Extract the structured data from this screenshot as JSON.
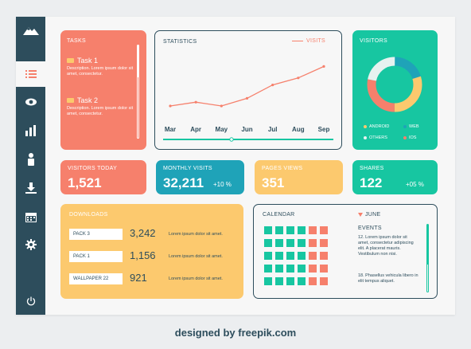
{
  "sidebar": {
    "items": [
      {
        "icon": "mountain-logo-icon"
      },
      {
        "icon": "list-icon"
      },
      {
        "icon": "eye-icon"
      },
      {
        "icon": "bar-chart-icon"
      },
      {
        "icon": "user-icon"
      },
      {
        "icon": "download-icon"
      },
      {
        "icon": "calendar-icon"
      },
      {
        "icon": "gear-icon"
      },
      {
        "icon": "power-icon"
      }
    ]
  },
  "tasks": {
    "title": "TASKS",
    "items": [
      {
        "title": "Task 1",
        "desc": "Description. Lorem ipsum dolor sit amet, consectetur."
      },
      {
        "title": "Task 2",
        "desc": "Description. Lorem ipsum dolor sit amet, consectetur."
      }
    ]
  },
  "statistics": {
    "title": "STATISTICS",
    "legend": "VISITS"
  },
  "chart_data": {
    "type": "line",
    "categories": [
      "Mar",
      "Apr",
      "May",
      "Jun",
      "Jul",
      "Aug",
      "Sep"
    ],
    "series": [
      {
        "name": "VISITS",
        "values": [
          20,
          26,
          20,
          32,
          53,
          64,
          82
        ]
      }
    ],
    "ylim": [
      0,
      100
    ],
    "title": "STATISTICS"
  },
  "visitors": {
    "title": "VISITORS",
    "segments": [
      {
        "label": "ANDROID",
        "value": 30,
        "color": "#fcc96e"
      },
      {
        "label": "WEB",
        "value": 20,
        "color": "#1fa3b8"
      },
      {
        "label": "OTHERS",
        "value": 22,
        "color": "#e6f2f0"
      },
      {
        "label": "IOS",
        "value": 28,
        "color": "#f6806c"
      }
    ]
  },
  "kpis": [
    {
      "label": "VISITORS TODAY",
      "value": "1,521",
      "delta": "",
      "color": "#f6806c"
    },
    {
      "label": "MONTHLY VISITS",
      "value": "32,211",
      "delta": "+10 %",
      "color": "#1fa3b8"
    },
    {
      "label": "PAGES VIEWS",
      "value": "351",
      "delta": "",
      "color": "#fcc96e"
    },
    {
      "label": "SHARES",
      "value": "122",
      "delta": "+05 %",
      "color": "#17c6a1"
    }
  ],
  "downloads": {
    "title": "DOWNLOADS",
    "rows": [
      {
        "name": "PACK 3",
        "value": "3,242",
        "text": "Lorem ipsum dolor sit amet."
      },
      {
        "name": "PACK 1",
        "value": "1,156",
        "text": "Lorem ipsum dolor sit amet."
      },
      {
        "name": "WALLPAPER 22",
        "value": "921",
        "text": "Lorem ipsum dolor sit amet."
      }
    ]
  },
  "calendar": {
    "title": "CALENDAR",
    "month": "JUNE",
    "events_title": "EVENTS",
    "events": [
      "12. Lorem ipsum dolor sit amet, consectetur adipiscing elit. A placerat mauris. Vestibulum non nisi.",
      "18. Phasellus vehicula libero in elit tempus aliquet."
    ],
    "cells": [
      "g",
      "g",
      "g",
      "g",
      "r",
      "r",
      "g",
      "g",
      "g",
      "g",
      "r",
      "r",
      "g",
      "g",
      "g",
      "g",
      "r",
      "r",
      "g",
      "g",
      "g",
      "g",
      "r",
      "r",
      "g",
      "g",
      "g",
      "g",
      "r",
      "r"
    ],
    "colors": {
      "g": "#17c6a1",
      "r": "#f6806c"
    }
  },
  "footer": "designed by  freepik.com"
}
